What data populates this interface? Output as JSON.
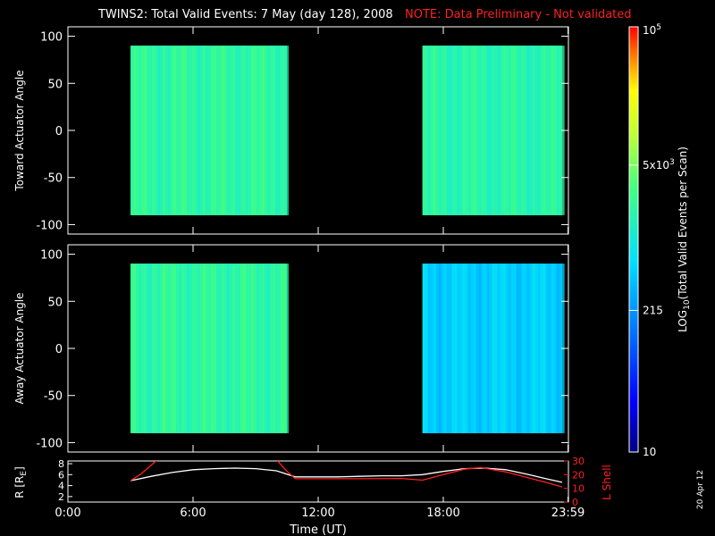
{
  "title": "TWINS2: Total Valid Events:  7 May (day 128), 2008",
  "note": "NOTE: Data Preliminary - Not validated",
  "colors": {
    "background": "#000000",
    "text": "#ffffff",
    "note": "#ff2020",
    "r_line": "#ffffff",
    "lshell_line": "#ff2020"
  },
  "chart_data": [
    {
      "type": "heatmap",
      "ylabel": "Toward Actuator Angle",
      "xlim": [
        0,
        24
      ],
      "ylim": [
        -110,
        110
      ],
      "yticks": [
        -100,
        -50,
        0,
        50,
        100
      ],
      "data_blocks": [
        {
          "t_start": 3.0,
          "t_end": 10.5,
          "angle_min": -90,
          "angle_max": 90,
          "typical_log10_value": 3.3
        },
        {
          "t_start": 17.0,
          "t_end": 23.7,
          "angle_min": -90,
          "angle_max": 90,
          "typical_log10_value": 3.25
        }
      ]
    },
    {
      "type": "heatmap",
      "ylabel": "Away Actuator Angle",
      "xlim": [
        0,
        24
      ],
      "ylim": [
        -110,
        110
      ],
      "yticks": [
        -100,
        -50,
        0,
        50,
        100
      ],
      "data_blocks": [
        {
          "t_start": 3.0,
          "t_end": 10.5,
          "angle_min": -90,
          "angle_max": 90,
          "typical_log10_value": 3.3
        },
        {
          "t_start": 17.0,
          "t_end": 23.7,
          "angle_min": -90,
          "angle_max": 90,
          "typical_log10_value": 2.7
        }
      ]
    },
    {
      "type": "line",
      "xlabel": "Time (UT)",
      "ylabel_left": "R [R",
      "ylabel_left_sub": "E",
      "ylabel_left_end": "]",
      "ylabel_right": "L Shell",
      "x_tick_labels": [
        "0:00",
        "6:00",
        "12:00",
        "18:00",
        "23:59"
      ],
      "x_tick_values": [
        0,
        6,
        12,
        18,
        23.98
      ],
      "ylim_left": [
        1,
        8.5
      ],
      "yticks_left": [
        2,
        4,
        6,
        8
      ],
      "ylim_right": [
        0,
        30
      ],
      "yticks_right": [
        0,
        10,
        20,
        30
      ],
      "series": [
        {
          "axis": "left",
          "color": "#ffffff",
          "x": [
            3.0,
            4.0,
            5.0,
            6.0,
            7.0,
            8.0,
            9.0,
            10.0,
            10.9,
            12.0,
            13.0,
            14.0,
            15.0,
            16.0,
            17.0,
            18.0,
            19.0,
            20.0,
            21.0,
            22.0,
            23.0,
            23.7
          ],
          "y": [
            4.9,
            5.7,
            6.4,
            6.9,
            7.1,
            7.2,
            7.1,
            6.7,
            5.6,
            5.6,
            5.6,
            5.7,
            5.8,
            5.8,
            6.0,
            6.6,
            7.1,
            7.2,
            6.9,
            6.1,
            5.2,
            4.6
          ]
        },
        {
          "axis": "right",
          "color": "#ff2020",
          "segments": [
            {
              "x": [
                3.0,
                3.5,
                4.0,
                4.3
              ],
              "y": [
                15.5,
                20.5,
                27.0,
                31.0
              ]
            },
            {
              "x": [
                10.0,
                10.4,
                10.9
              ],
              "y": [
                31.0,
                24.0,
                17.0
              ]
            },
            {
              "x": [
                10.9,
                12.0,
                14.0,
                16.0,
                17.0,
                18.0,
                19.0,
                19.8,
                21.0,
                22.0,
                23.0,
                23.7
              ],
              "y": [
                17.0,
                17.0,
                17.0,
                17.2,
                16.0,
                20.0,
                24.0,
                25.2,
                22.0,
                18.0,
                14.0,
                11.0
              ]
            }
          ]
        }
      ]
    }
  ],
  "colorbar": {
    "label_pre": "LOG",
    "label_sub": "10",
    "label_post": "(Total Valid Events per Scan)",
    "scale": "log",
    "range": [
      10,
      100000
    ],
    "labels": [
      {
        "value": 100000,
        "text_base": "10",
        "text_sup": "5"
      },
      {
        "value": 5000,
        "text_base": "5x10",
        "text_sup": "3"
      },
      {
        "value": 215,
        "text_base": "215",
        "text_sup": ""
      },
      {
        "value": 10,
        "text_base": "10",
        "text_sup": ""
      }
    ]
  },
  "date_stamp": "20 Apr 12"
}
